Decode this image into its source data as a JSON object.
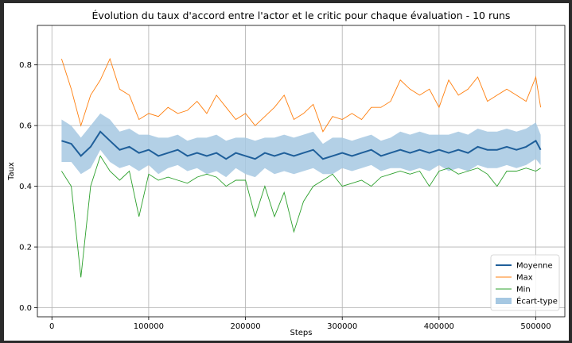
{
  "chart_data": {
    "type": "line",
    "title": "Évolution du taux d'accord entre l'actor et le critic pour chaque évaluation - 10 runs",
    "xlabel": "Steps",
    "ylabel": "Taux",
    "xlim": [
      -15000,
      530000
    ],
    "ylim": [
      -0.03,
      0.93
    ],
    "xticks": [
      0,
      100000,
      200000,
      300000,
      400000,
      500000
    ],
    "xtick_labels": [
      "0",
      "100000",
      "200000",
      "300000",
      "400000",
      "500000"
    ],
    "yticks": [
      0.0,
      0.2,
      0.4,
      0.6,
      0.8
    ],
    "ytick_labels": [
      "0.0",
      "0.2",
      "0.4",
      "0.6",
      "0.8"
    ],
    "grid": true,
    "legend_position": "bottom-right",
    "legend": [
      "Moyenne",
      "Max",
      "Min",
      "Écart-type"
    ],
    "colors": {
      "mean": "#1f5f9a",
      "max": "#ff7f0e",
      "min": "#2ca02c",
      "std": "#a6c8e2"
    },
    "x": [
      10000,
      20000,
      30000,
      40000,
      50000,
      60000,
      70000,
      80000,
      90000,
      100000,
      110000,
      120000,
      130000,
      140000,
      150000,
      160000,
      170000,
      180000,
      190000,
      200000,
      210000,
      220000,
      230000,
      240000,
      250000,
      260000,
      270000,
      280000,
      290000,
      300000,
      310000,
      320000,
      330000,
      340000,
      350000,
      360000,
      370000,
      380000,
      390000,
      400000,
      410000,
      420000,
      430000,
      440000,
      450000,
      460000,
      470000,
      480000,
      490000,
      500000,
      505000
    ],
    "series": [
      {
        "name": "Moyenne",
        "values": [
          0.55,
          0.54,
          0.5,
          0.53,
          0.58,
          0.55,
          0.52,
          0.53,
          0.51,
          0.52,
          0.5,
          0.51,
          0.52,
          0.5,
          0.51,
          0.5,
          0.51,
          0.49,
          0.51,
          0.5,
          0.49,
          0.51,
          0.5,
          0.51,
          0.5,
          0.51,
          0.52,
          0.49,
          0.5,
          0.51,
          0.5,
          0.51,
          0.52,
          0.5,
          0.51,
          0.52,
          0.51,
          0.52,
          0.51,
          0.52,
          0.51,
          0.52,
          0.51,
          0.53,
          0.52,
          0.52,
          0.53,
          0.52,
          0.53,
          0.55,
          0.52
        ]
      },
      {
        "name": "Max",
        "values": [
          0.82,
          0.72,
          0.6,
          0.7,
          0.75,
          0.82,
          0.72,
          0.7,
          0.62,
          0.64,
          0.63,
          0.66,
          0.64,
          0.65,
          0.68,
          0.64,
          0.7,
          0.66,
          0.62,
          0.64,
          0.6,
          0.63,
          0.66,
          0.7,
          0.62,
          0.64,
          0.67,
          0.58,
          0.63,
          0.62,
          0.64,
          0.62,
          0.66,
          0.66,
          0.68,
          0.75,
          0.72,
          0.7,
          0.72,
          0.66,
          0.75,
          0.7,
          0.72,
          0.76,
          0.68,
          0.7,
          0.72,
          0.7,
          0.68,
          0.76,
          0.66
        ]
      },
      {
        "name": "Min",
        "values": [
          0.45,
          0.4,
          0.1,
          0.4,
          0.5,
          0.45,
          0.42,
          0.45,
          0.3,
          0.44,
          0.42,
          0.43,
          0.42,
          0.41,
          0.43,
          0.44,
          0.43,
          0.4,
          0.42,
          0.42,
          0.3,
          0.4,
          0.3,
          0.38,
          0.25,
          0.35,
          0.4,
          0.42,
          0.44,
          0.4,
          0.41,
          0.42,
          0.4,
          0.43,
          0.44,
          0.45,
          0.44,
          0.45,
          0.4,
          0.45,
          0.46,
          0.44,
          0.45,
          0.46,
          0.44,
          0.4,
          0.45,
          0.45,
          0.46,
          0.45,
          0.46
        ]
      },
      {
        "name": "Écart-type",
        "upper": [
          0.62,
          0.6,
          0.56,
          0.6,
          0.64,
          0.62,
          0.58,
          0.59,
          0.57,
          0.57,
          0.56,
          0.56,
          0.57,
          0.55,
          0.56,
          0.56,
          0.57,
          0.55,
          0.56,
          0.56,
          0.55,
          0.56,
          0.56,
          0.57,
          0.56,
          0.57,
          0.58,
          0.54,
          0.56,
          0.56,
          0.55,
          0.56,
          0.57,
          0.55,
          0.56,
          0.58,
          0.57,
          0.58,
          0.57,
          0.57,
          0.57,
          0.58,
          0.57,
          0.59,
          0.58,
          0.58,
          0.59,
          0.58,
          0.59,
          0.61,
          0.57
        ],
        "lower": [
          0.48,
          0.48,
          0.44,
          0.46,
          0.52,
          0.48,
          0.46,
          0.47,
          0.45,
          0.47,
          0.44,
          0.46,
          0.47,
          0.45,
          0.46,
          0.44,
          0.45,
          0.43,
          0.46,
          0.44,
          0.43,
          0.46,
          0.44,
          0.45,
          0.44,
          0.45,
          0.46,
          0.44,
          0.44,
          0.46,
          0.45,
          0.46,
          0.47,
          0.45,
          0.46,
          0.46,
          0.45,
          0.46,
          0.45,
          0.47,
          0.45,
          0.46,
          0.45,
          0.47,
          0.46,
          0.46,
          0.47,
          0.46,
          0.47,
          0.49,
          0.47
        ]
      }
    ]
  }
}
